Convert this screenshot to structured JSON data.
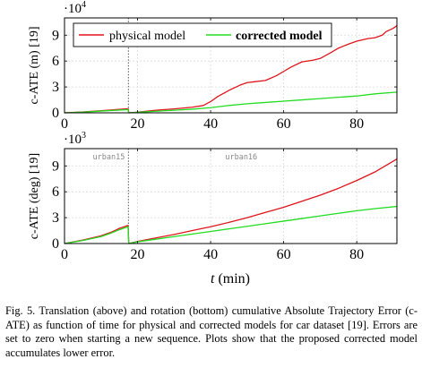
{
  "figure": {
    "shared_xlabel": "t (min)",
    "series_names": [
      "physical model",
      "corrected model"
    ],
    "colors": {
      "physical": "#e0141b",
      "corrected": "#22dd22",
      "reset": "#555555",
      "grid": "#d9d9d9"
    }
  },
  "caption": "Fig. 5.   Translation (above) and rotation (bottom) cumulative Absolute Trajectory Error (c-ATE) as function of time for physical and corrected models for car dataset [19]. Errors are set to zero when starting a new sequence. Plots show that the proposed corrected model accumulates lower error.",
  "chart_data": [
    {
      "type": "line",
      "ylabel": "c-ATE (m) [19]",
      "multiplier": "·10",
      "multiplier_exp": "4",
      "xlim": [
        0,
        91
      ],
      "ylim": [
        0,
        11
      ],
      "x_ticks": [
        0,
        20,
        40,
        60,
        80
      ],
      "y_ticks": [
        0,
        3,
        6,
        9
      ],
      "grid": true,
      "legend": {
        "placement": "top-left",
        "entries": [
          "physical model",
          "corrected model"
        ]
      },
      "reset_x": 17.5,
      "series": [
        {
          "name": "physical model",
          "x": [
            0,
            5,
            10,
            15,
            17.4,
            17.6,
            20,
            25,
            30,
            35,
            38,
            40,
            42,
            45,
            48,
            50,
            52,
            55,
            58,
            60,
            62,
            65,
            68,
            70,
            73,
            75,
            78,
            80,
            83,
            85,
            87,
            88,
            90,
            91
          ],
          "values": [
            0,
            0.1,
            0.25,
            0.4,
            0.48,
            0,
            0.08,
            0.3,
            0.45,
            0.65,
            0.85,
            1.3,
            1.9,
            2.6,
            3.2,
            3.5,
            3.6,
            3.75,
            4.3,
            4.8,
            5.3,
            5.9,
            6.1,
            6.3,
            7.0,
            7.5,
            8.0,
            8.3,
            8.6,
            8.7,
            9.0,
            9.4,
            9.8,
            10.1
          ]
        },
        {
          "name": "corrected model",
          "x": [
            0,
            5,
            10,
            15,
            17.4,
            17.6,
            20,
            25,
            30,
            35,
            40,
            45,
            50,
            55,
            60,
            65,
            70,
            75,
            80,
            85,
            91
          ],
          "values": [
            0,
            0.08,
            0.2,
            0.32,
            0.38,
            0,
            0.06,
            0.18,
            0.3,
            0.42,
            0.6,
            0.85,
            1.05,
            1.2,
            1.35,
            1.5,
            1.65,
            1.8,
            1.95,
            2.2,
            2.4
          ]
        }
      ]
    },
    {
      "type": "line",
      "ylabel": "c-ATE (deg) [19]",
      "multiplier": "·10",
      "multiplier_exp": "3",
      "xlim": [
        0,
        91
      ],
      "ylim": [
        0,
        11
      ],
      "x_ticks": [
        0,
        20,
        40,
        60,
        80
      ],
      "y_ticks": [
        0,
        3,
        6,
        9
      ],
      "grid": true,
      "reset_x": 17.5,
      "annotations": [
        "urban15",
        "urban16"
      ],
      "series": [
        {
          "name": "physical model",
          "x": [
            0,
            5,
            10,
            13,
            15,
            17.4,
            17.6,
            20,
            25,
            30,
            35,
            40,
            45,
            50,
            55,
            60,
            65,
            70,
            75,
            80,
            85,
            91
          ],
          "values": [
            0,
            0.4,
            0.9,
            1.35,
            1.75,
            2.1,
            0,
            0.25,
            0.65,
            1.05,
            1.5,
            1.95,
            2.45,
            3.0,
            3.6,
            4.2,
            4.9,
            5.6,
            6.4,
            7.3,
            8.3,
            9.8
          ]
        },
        {
          "name": "corrected model",
          "x": [
            0,
            5,
            10,
            13,
            15,
            17.4,
            17.6,
            20,
            25,
            30,
            35,
            40,
            45,
            50,
            55,
            60,
            65,
            70,
            75,
            80,
            85,
            91
          ],
          "values": [
            0,
            0.35,
            0.8,
            1.25,
            1.6,
            1.95,
            0,
            0.2,
            0.5,
            0.8,
            1.1,
            1.4,
            1.7,
            2.0,
            2.3,
            2.6,
            2.9,
            3.2,
            3.5,
            3.8,
            4.05,
            4.3
          ]
        }
      ]
    }
  ]
}
